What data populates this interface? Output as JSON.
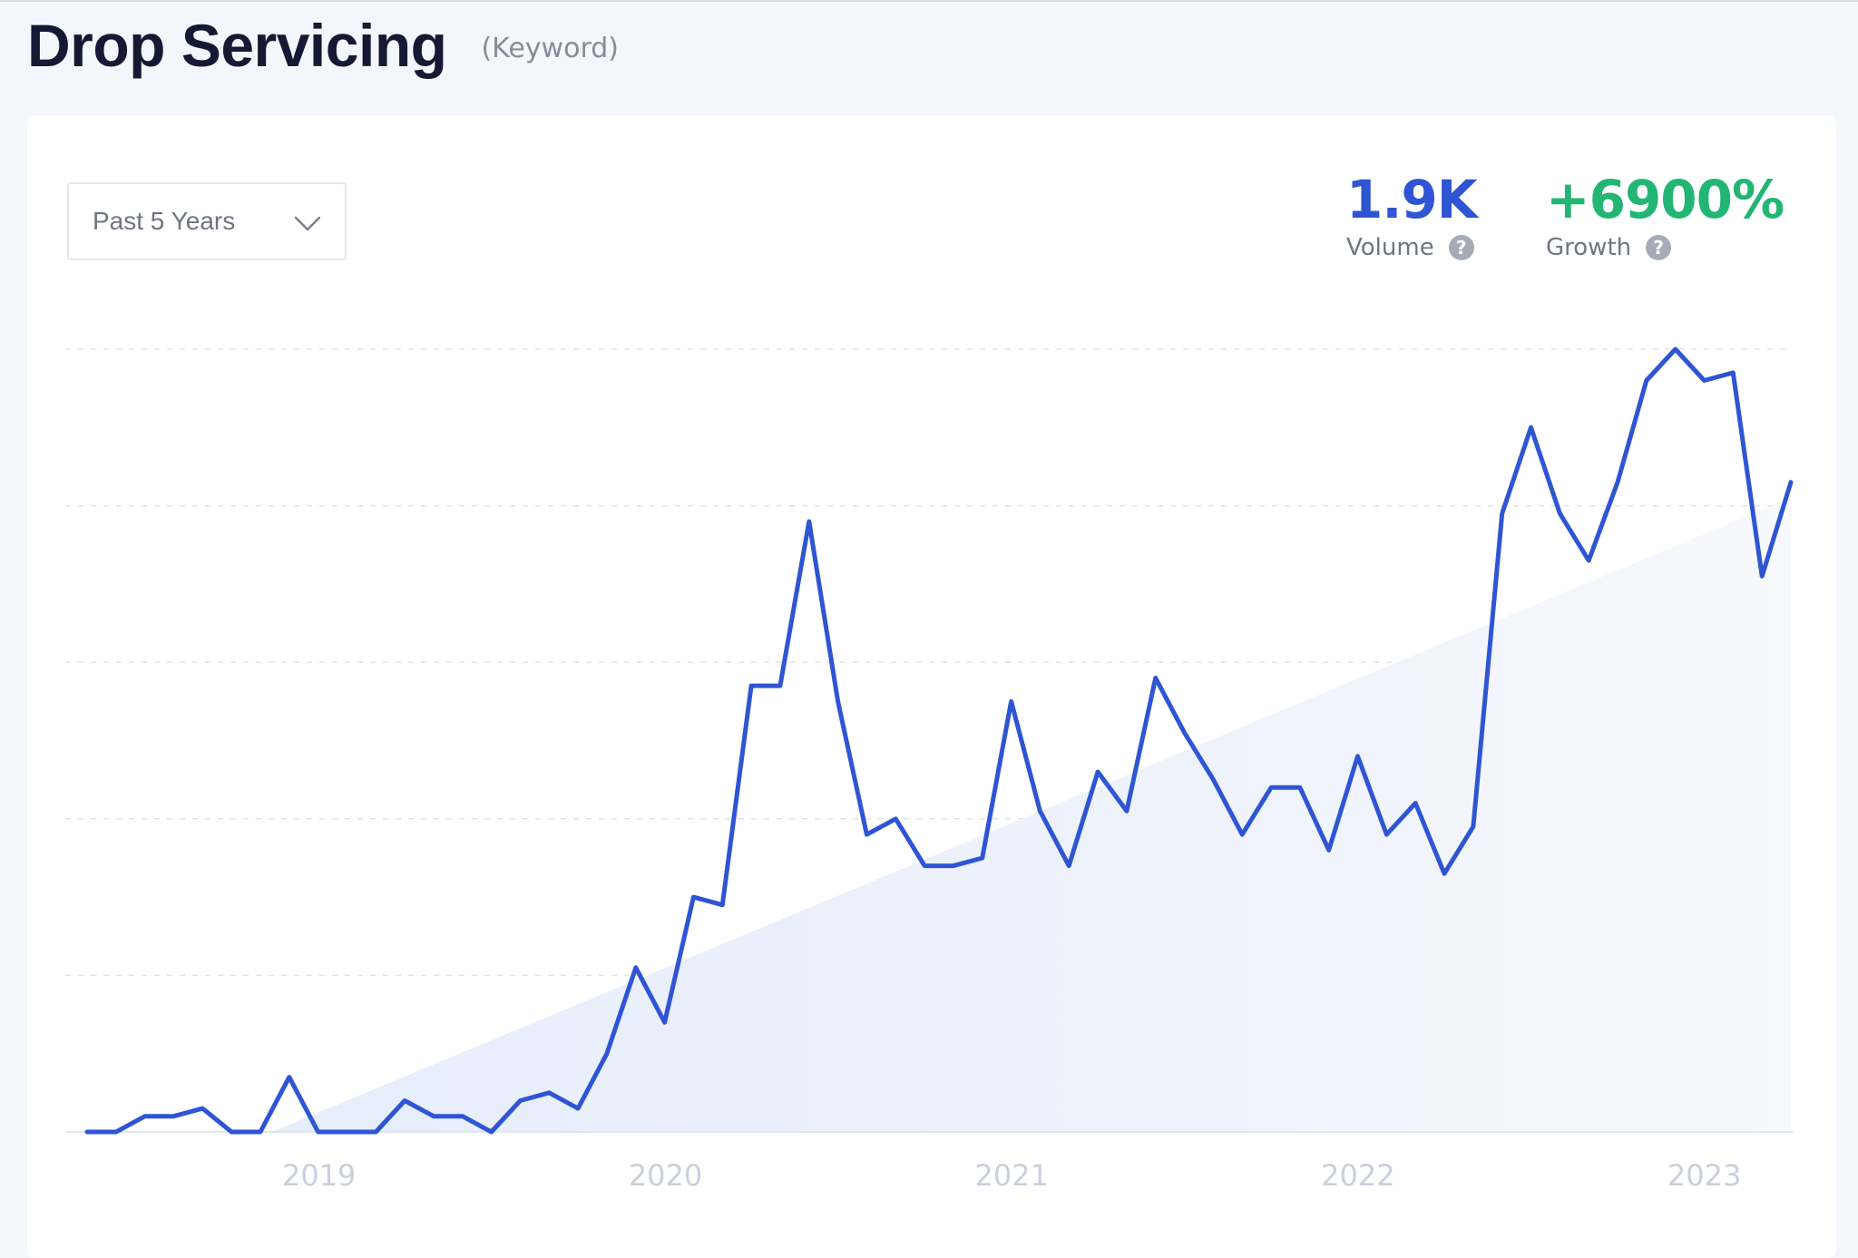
{
  "header": {
    "title": "Drop Servicing",
    "subtitle": "(Keyword)"
  },
  "controls": {
    "range_label": "Past 5 Years"
  },
  "metrics": {
    "volume": {
      "value": "1.9K",
      "label": "Volume",
      "color": "#2f55d4"
    },
    "growth": {
      "value": "+6900%",
      "label": "Growth",
      "color": "#22b573"
    }
  },
  "colors": {
    "line": "#2f55d4",
    "trend_fill": "#e8eefb",
    "grid": "#dfe3ea"
  },
  "chart_data": {
    "type": "line",
    "title": "",
    "xlabel": "",
    "ylabel": "",
    "x_ticks": [
      "2019",
      "2020",
      "2021",
      "2022",
      "2023"
    ],
    "x_range": [
      2018.33,
      2023.25
    ],
    "ylim": [
      0,
      100
    ],
    "grid": true,
    "series": [
      {
        "values": [
          0,
          0,
          2,
          2,
          3,
          0,
          0,
          7,
          0,
          0,
          0,
          4,
          2,
          2,
          0,
          4,
          5,
          3,
          10,
          21,
          14,
          30,
          29,
          57,
          57,
          78,
          55,
          38,
          40,
          34,
          34,
          35,
          55,
          41,
          34,
          46,
          41,
          58,
          51,
          45,
          38,
          44,
          44,
          36,
          48,
          38,
          42,
          33,
          39,
          79,
          90,
          79,
          73,
          83,
          96,
          100,
          96,
          97,
          71,
          83
        ]
      }
    ],
    "trend_band": {
      "start_value": 0,
      "end_value": 81
    }
  }
}
